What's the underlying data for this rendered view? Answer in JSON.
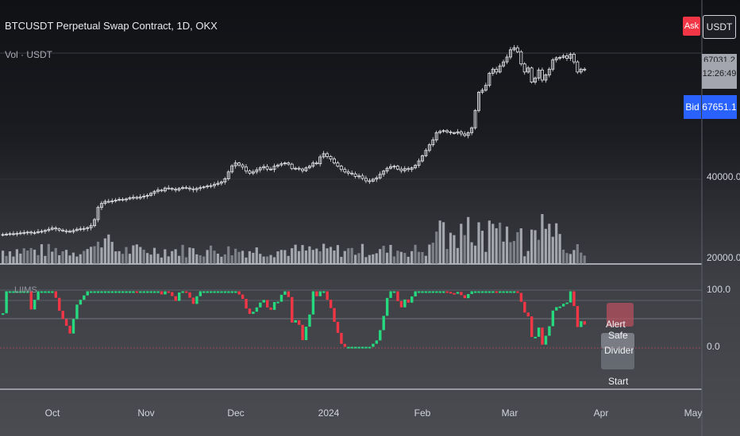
{
  "header": {
    "symbol_title": "BTCUSDT Perpetual Swap Contract, 1D, OKX",
    "volume_label": "Vol · USDT",
    "oscillator_label": "LIIMS"
  },
  "price_panel": {
    "ask_label": "Ask",
    "currency": "USDT",
    "last_price_partial": "67031.2",
    "countdown": "12:26:49",
    "bid_label": "Bid",
    "bid_price": "67651.1",
    "axis_ticks": [
      "40000.0",
      "20000.0"
    ]
  },
  "oscillator_panel": {
    "axis_ticks": [
      "100.0",
      "0.0"
    ],
    "annotations": [
      "Alert",
      "Safe",
      "Divider",
      "Start"
    ]
  },
  "time_axis": {
    "months": [
      "Oct",
      "Nov",
      "Dec",
      "2024",
      "Feb",
      "Mar",
      "Apr",
      "May"
    ]
  },
  "colors": {
    "up": "#26d97f",
    "down": "#f23645",
    "bid": "#2962ff",
    "ask": "#f23645"
  },
  "chart_data": {
    "type": "candlestick",
    "title": "BTCUSDT Perpetual Swap Contract, 1D, OKX",
    "y_axis_ticks": [
      40000,
      20000
    ],
    "x_axis_ticks": [
      "Oct",
      "Nov",
      "Dec",
      "2024",
      "Feb",
      "Mar",
      "Apr",
      "May"
    ],
    "close_approx": [
      26300,
      26400,
      26500,
      26500,
      26600,
      26700,
      26800,
      26900,
      26700,
      26800,
      27000,
      27100,
      27300,
      27600,
      27900,
      27700,
      27400,
      27200,
      27100,
      27000,
      27300,
      27600,
      27700,
      27800,
      28000,
      28500,
      30000,
      33000,
      34000,
      34500,
      34400,
      34600,
      34800,
      35000,
      34900,
      35100,
      35400,
      35500,
      35300,
      35600,
      35800,
      36000,
      36500,
      37000,
      37300,
      37100,
      37800,
      37700,
      37500,
      37300,
      37700,
      37900,
      37800,
      37600,
      37400,
      37700,
      37900,
      38100,
      38300,
      38400,
      38700,
      39000,
      39300,
      40100,
      41800,
      43300,
      44000,
      43500,
      43000,
      42000,
      41500,
      41800,
      42300,
      42800,
      43100,
      42500,
      42400,
      43200,
      43500,
      43800,
      44000,
      43700,
      42600,
      42700,
      42500,
      42100,
      42800,
      43200,
      44000,
      43800,
      45500,
      46300,
      45600,
      45000,
      44000,
      43200,
      42400,
      41800,
      41500,
      41300,
      40700,
      40800,
      40200,
      39600,
      39500,
      40000,
      40300,
      41200,
      42000,
      42700,
      43100,
      43200,
      42500,
      42100,
      42600,
      42400,
      42800,
      43400,
      44500,
      45800,
      47100,
      48500,
      49700,
      51500,
      51800,
      52000,
      51700,
      51500,
      51400,
      51700,
      51200,
      50800,
      51500,
      52700,
      57000,
      61500,
      62000,
      63200,
      66200,
      67200,
      66500,
      68000,
      69000,
      70200,
      72000,
      72500,
      71500,
      68500,
      66500,
      67500,
      64000,
      65000,
      67000,
      64500,
      65800,
      67200,
      69500,
      70000,
      70100,
      70500,
      69900,
      70900,
      69000,
      66500,
      67200,
      67100
    ]
  }
}
